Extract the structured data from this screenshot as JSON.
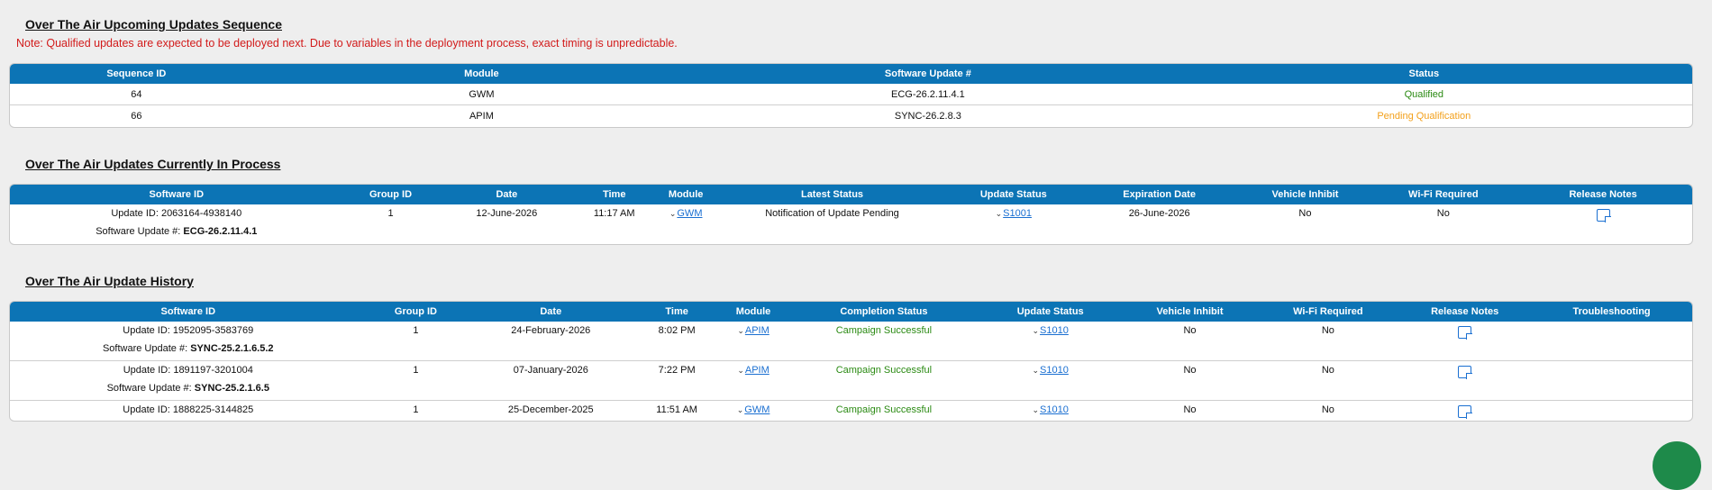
{
  "upcoming": {
    "title": "Over The Air Upcoming Updates Sequence",
    "note": "Note: Qualified updates are expected to be deployed next. Due to variables in the deployment process, exact timing is unpredictable.",
    "headers": [
      "Sequence ID",
      "Module",
      "Software Update #",
      "Status"
    ],
    "rows": [
      {
        "sequence_id": "64",
        "module": "GWM",
        "software_update": "ECG-26.2.11.4.1",
        "status": "Qualified",
        "status_color": "#2a8a12"
      },
      {
        "sequence_id": "66",
        "module": "APIM",
        "software_update": "SYNC-26.2.8.3",
        "status": "Pending Qualification",
        "status_color": "#f3a01b"
      }
    ]
  },
  "in_process": {
    "title": "Over The Air Updates Currently In Process",
    "headers": [
      "Software ID",
      "Group ID",
      "Date",
      "Time",
      "Module",
      "Latest Status",
      "Update Status",
      "Expiration Date",
      "Vehicle Inhibit",
      "Wi-Fi Required",
      "Release Notes"
    ],
    "rows": [
      {
        "update_id": "Update ID: 2063164-4938140",
        "sw_label": "Software Update #: ",
        "sw_value": "ECG-26.2.11.4.1",
        "group_id": "1",
        "date": "12-June-2026",
        "time": "11:17 AM",
        "module": "GWM",
        "latest_status": "Notification of Update Pending",
        "update_status": "S1001",
        "expiration_date": "26-June-2026",
        "vehicle_inhibit": "No",
        "wifi_required": "No"
      }
    ]
  },
  "history": {
    "title": "Over The Air Update History",
    "headers": [
      "Software ID",
      "Group ID",
      "Date",
      "Time",
      "Module",
      "Completion Status",
      "Update Status",
      "Vehicle Inhibit",
      "Wi-Fi Required",
      "Release Notes",
      "Troubleshooting"
    ],
    "rows": [
      {
        "update_id": "Update ID: 1952095-3583769",
        "sw_label": "Software Update #: ",
        "sw_value": "SYNC-25.2.1.6.5.2",
        "group_id": "1",
        "date": "24-February-2026",
        "time": "8:02 PM",
        "module": "APIM",
        "completion_status": "Campaign Successful",
        "update_status": "S1010",
        "vehicle_inhibit": "No",
        "wifi_required": "No"
      },
      {
        "update_id": "Update ID: 1891197-3201004",
        "sw_label": "Software Update #: ",
        "sw_value": "SYNC-25.2.1.6.5",
        "group_id": "1",
        "date": "07-January-2026",
        "time": "7:22 PM",
        "module": "APIM",
        "completion_status": "Campaign Successful",
        "update_status": "S1010",
        "vehicle_inhibit": "No",
        "wifi_required": "No"
      },
      {
        "update_id": "Update ID: 1888225-3144825",
        "group_id": "1",
        "date": "25-December-2025",
        "time": "11:51 AM",
        "module": "GWM",
        "completion_status": "Campaign Successful",
        "update_status": "S1010",
        "vehicle_inhibit": "No",
        "wifi_required": "No"
      }
    ]
  },
  "icons": {
    "chevron": "chevron-down-icon",
    "release_notes": "note-icon"
  },
  "colors": {
    "header_bg": "#0c74b5",
    "note_text": "#d21b1b",
    "success": "#2a8a12",
    "pending": "#f3a01b",
    "link": "#1a6fd1"
  }
}
